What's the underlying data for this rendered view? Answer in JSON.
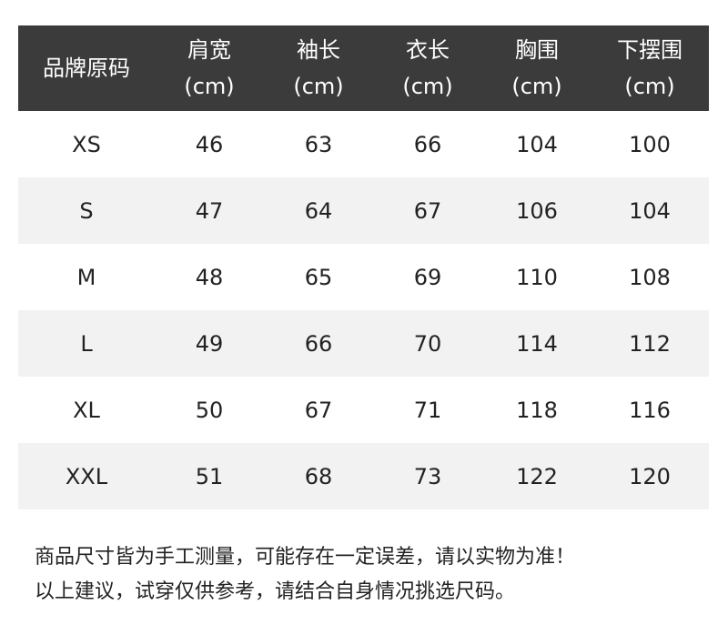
{
  "table": {
    "header": [
      {
        "label": "品牌原码"
      },
      {
        "label": "肩宽",
        "unit": "(cm)"
      },
      {
        "label": "袖长",
        "unit": "(cm)"
      },
      {
        "label": "衣长",
        "unit": "(cm)"
      },
      {
        "label": "胸围",
        "unit": "(cm)"
      },
      {
        "label": "下摆围",
        "unit": "(cm)"
      }
    ],
    "rows": [
      [
        "XS",
        46,
        63,
        66,
        104,
        100
      ],
      [
        "S",
        47,
        64,
        67,
        106,
        104
      ],
      [
        "M",
        48,
        65,
        69,
        110,
        108
      ],
      [
        "L",
        49,
        66,
        70,
        114,
        112
      ],
      [
        "XL",
        50,
        67,
        71,
        118,
        116
      ],
      [
        "XXL",
        51,
        68,
        73,
        122,
        120
      ]
    ]
  },
  "notes": [
    "商品尺寸皆为手工测量，可能存在一定误差，请以实物为准！",
    "以上建议，试穿仅供参考，请结合自身情况挑选尺码。"
  ]
}
